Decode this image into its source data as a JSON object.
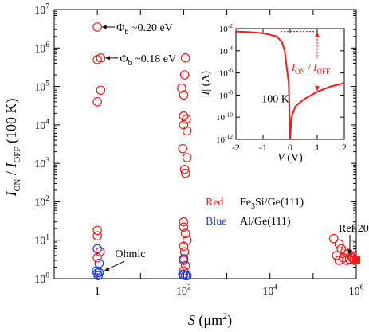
{
  "chart_data": {
    "type": "scatter",
    "xaxis": {
      "scale": "log",
      "range": [
        0.1,
        1000000
      ],
      "ticks": [
        1,
        100,
        10000,
        1000000
      ],
      "tick_labels": [
        "1",
        "10^2",
        "10^4",
        "10^6"
      ],
      "label_parts": [
        "S",
        " (",
        "μm",
        "2",
        ")"
      ]
    },
    "yaxis": {
      "scale": "log",
      "range": [
        1,
        10000000
      ],
      "ticks": [
        1,
        10,
        100,
        1000,
        10000,
        100000,
        1000000,
        10000000
      ],
      "tick_labels": [
        "10^0",
        "10^1",
        "10^2",
        "10^3",
        "10^4",
        "10^5",
        "10^6",
        "10^7"
      ],
      "label_parts": [
        "I",
        "ON",
        " / ",
        "I",
        "OFF",
        "  (100 K)"
      ]
    },
    "series": [
      {
        "name": "Fe3Si/Ge(111)",
        "color": "#ff1a1a",
        "points": [
          [
            1,
            3500000
          ],
          [
            1,
            500000
          ],
          [
            1.2,
            550000
          ],
          [
            1.2,
            80000
          ],
          [
            1,
            40000
          ],
          [
            1,
            18
          ],
          [
            1,
            13
          ],
          [
            1,
            3.5
          ],
          [
            1.15,
            5
          ],
          [
            90,
            90000
          ],
          [
            100,
            60000
          ],
          [
            105,
            200000
          ],
          [
            110,
            550000
          ],
          [
            95,
            2400
          ],
          [
            100,
            10000
          ],
          [
            115,
            14000
          ],
          [
            100,
            17000
          ],
          [
            120,
            7000
          ],
          [
            105,
            700
          ],
          [
            120,
            1400
          ],
          [
            110,
            550
          ],
          [
            100,
            30
          ],
          [
            100,
            22
          ],
          [
            110,
            15
          ],
          [
            120,
            10
          ],
          [
            100,
            7
          ],
          [
            105,
            5
          ],
          [
            100,
            3
          ],
          [
            110,
            2.2
          ],
          [
            100,
            1.6
          ],
          [
            300000,
            11
          ],
          [
            400000,
            8
          ],
          [
            450000,
            6
          ],
          [
            350000,
            4
          ],
          [
            400000,
            3
          ],
          [
            500000,
            3.5
          ],
          [
            550000,
            5
          ],
          [
            600000,
            3
          ],
          [
            650000,
            4.5
          ],
          [
            700000,
            3.2
          ],
          [
            750000,
            4
          ],
          [
            800000,
            3.5
          ],
          [
            900000,
            3
          ]
        ]
      },
      {
        "name": "Al/Ge(111)",
        "color": "#1a3cff",
        "points": [
          [
            1,
            6
          ],
          [
            1.1,
            2.5
          ],
          [
            0.95,
            1.6
          ],
          [
            1,
            1.4
          ],
          [
            1.1,
            1.45
          ],
          [
            1.05,
            1.2
          ],
          [
            100,
            3.3
          ],
          [
            100,
            1.25
          ],
          [
            110,
            1.2
          ],
          [
            95,
            1.3
          ],
          [
            120,
            1.2
          ]
        ]
      }
    ],
    "reference": {
      "label": "Ref.20",
      "x": 1000000,
      "y": 3,
      "color": "#ff1a1a"
    },
    "annotations": [
      {
        "label_parts": [
          "Φ",
          "b",
          " ~0.20 eV"
        ],
        "x": 1,
        "y": 3500000
      },
      {
        "label_parts": [
          "Φ",
          "b",
          " ~0.18 eV"
        ],
        "x": 1.2,
        "y": 550000
      },
      {
        "label_parts": [
          "Ohmic"
        ],
        "x": 1.1,
        "y": 1.4
      }
    ],
    "legend_lines": [
      {
        "color_word": "Red",
        "color": "#ff1a1a",
        "sample_parts": [
          "Fe",
          "3",
          "Si/Ge(111)"
        ]
      },
      {
        "color_word": "Blue",
        "color": "#1a3cff",
        "sample_parts": [
          "Al/Ge(111)"
        ]
      }
    ],
    "inset": {
      "type": "line",
      "xaxis": {
        "range": [
          -2,
          2
        ],
        "ticks": [
          -2,
          -1,
          0,
          1,
          2
        ],
        "tick_labels": [
          "-2",
          "-1",
          "0",
          "1",
          "2"
        ],
        "label_parts": [
          "V",
          " (V)"
        ]
      },
      "yaxis": {
        "scale": "log",
        "range": [
          1e-12,
          0.01
        ],
        "ticks": [
          1e-12,
          1e-10,
          1e-08,
          1e-06,
          0.0001,
          0.01
        ],
        "tick_labels": [
          "10^-12",
          "10^-10",
          "10^-8",
          "10^-6",
          "10^-4",
          "10^-2"
        ],
        "label_parts": [
          "|",
          "I",
          "| (A)"
        ]
      },
      "text": "100 K",
      "ratio_label_parts": [
        "I",
        "ON",
        " / ",
        "I",
        "OFF"
      ],
      "curve": [
        [
          -2,
          0.0055
        ],
        [
          -1.5,
          0.0048
        ],
        [
          -1.0,
          0.0038
        ],
        [
          -0.5,
          0.002
        ],
        [
          -0.3,
          0.0006
        ],
        [
          -0.2,
          0.0001
        ],
        [
          -0.15,
          1e-05
        ],
        [
          -0.1,
          1e-06
        ],
        [
          -0.05,
          1e-07
        ],
        [
          0,
          1e-12
        ],
        [
          0.05,
          1e-10
        ],
        [
          0.2,
          1e-09
        ],
        [
          0.5,
          4e-09
        ],
        [
          1.0,
          2e-08
        ],
        [
          1.5,
          6e-08
        ],
        [
          2,
          1.2e-07
        ]
      ]
    }
  }
}
